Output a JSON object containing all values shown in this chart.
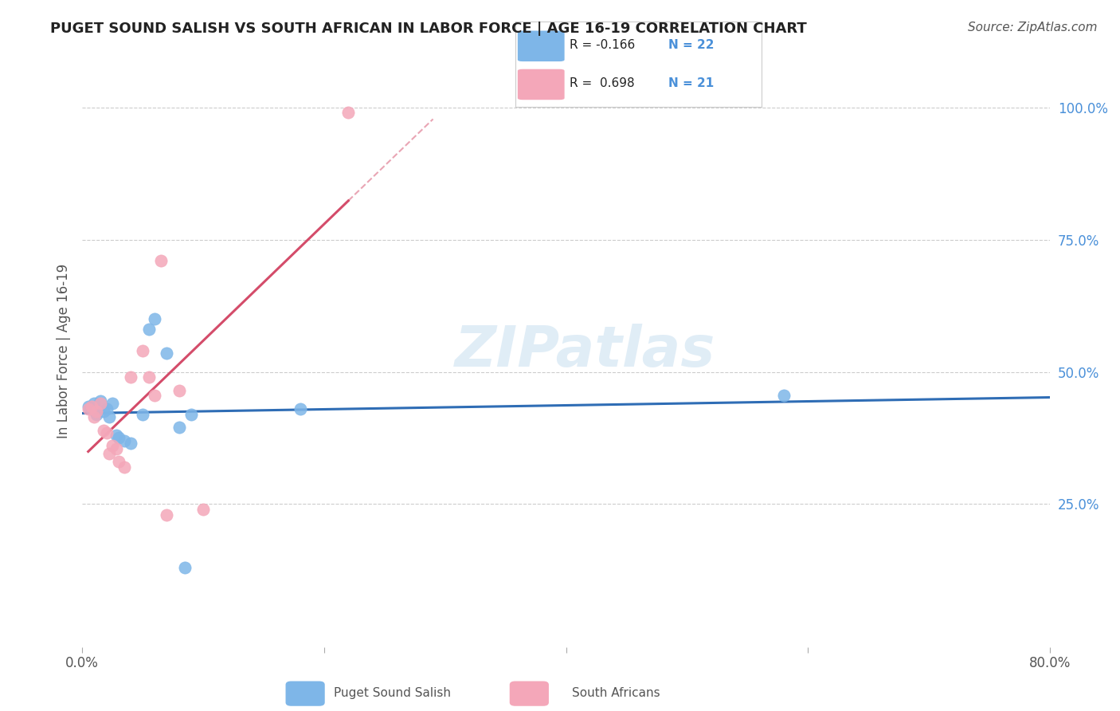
{
  "title": "PUGET SOUND SALISH VS SOUTH AFRICAN IN LABOR FORCE | AGE 16-19 CORRELATION CHART",
  "source": "Source: ZipAtlas.com",
  "xlabel": "",
  "ylabel": "In Labor Force | Age 16-19",
  "xlim": [
    0.0,
    0.8
  ],
  "ylim": [
    -0.02,
    1.1
  ],
  "xticks": [
    0.0,
    0.2,
    0.4,
    0.6,
    0.8
  ],
  "xtick_labels": [
    "0.0%",
    "",
    "",
    "",
    "80.0%"
  ],
  "ytick_right_vals": [
    0.25,
    0.5,
    0.75,
    1.0
  ],
  "ytick_right_labels": [
    "25.0%",
    "50.0%",
    "75.0%",
    "100.0%"
  ],
  "blue_label": "Puget Sound Salish",
  "pink_label": "South Africans",
  "R_blue": -0.166,
  "N_blue": 22,
  "R_pink": 0.698,
  "N_pink": 21,
  "blue_color": "#7EB6E8",
  "pink_color": "#F4A7B9",
  "blue_line_color": "#2F6DB5",
  "pink_line_color": "#D44C6A",
  "watermark": "ZIPatlas",
  "blue_x": [
    0.005,
    0.008,
    0.01,
    0.012,
    0.015,
    0.018,
    0.02,
    0.022,
    0.025,
    0.028,
    0.03,
    0.035,
    0.04,
    0.05,
    0.055,
    0.06,
    0.07,
    0.08,
    0.085,
    0.09,
    0.18,
    0.58
  ],
  "blue_y": [
    0.435,
    0.43,
    0.44,
    0.42,
    0.445,
    0.425,
    0.43,
    0.415,
    0.44,
    0.38,
    0.375,
    0.37,
    0.365,
    0.42,
    0.58,
    0.6,
    0.535,
    0.395,
    0.13,
    0.42,
    0.43,
    0.455
  ],
  "pink_x": [
    0.005,
    0.008,
    0.01,
    0.012,
    0.015,
    0.018,
    0.02,
    0.022,
    0.025,
    0.028,
    0.03,
    0.035,
    0.04,
    0.05,
    0.055,
    0.06,
    0.065,
    0.07,
    0.08,
    0.1,
    0.22
  ],
  "pink_y": [
    0.43,
    0.435,
    0.415,
    0.425,
    0.44,
    0.39,
    0.385,
    0.345,
    0.36,
    0.355,
    0.33,
    0.32,
    0.49,
    0.54,
    0.49,
    0.455,
    0.71,
    0.23,
    0.465,
    0.24,
    0.99
  ]
}
